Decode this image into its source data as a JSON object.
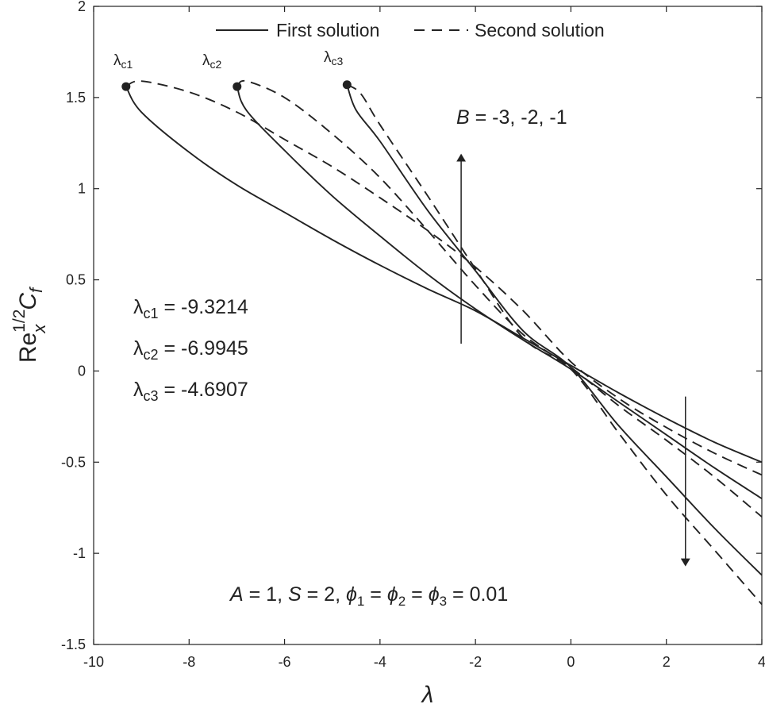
{
  "chart_data": {
    "type": "line",
    "xlabel": "λ",
    "ylabel": {
      "base": "Re",
      "sup": "1/2",
      "sub": "x",
      "cf": "C",
      "cf_sub": "f"
    },
    "xlim": [
      -10,
      4
    ],
    "ylim": [
      -1.5,
      2
    ],
    "xticks": [
      -10,
      -8,
      -6,
      -4,
      -2,
      0,
      2,
      4
    ],
    "yticks": [
      -1.5,
      -1,
      -0.5,
      0,
      0.5,
      1,
      1.5,
      2
    ],
    "xtick_labels": [
      "-10",
      "-8",
      "-6",
      "-4",
      "-2",
      "0",
      "2",
      "4"
    ],
    "ytick_labels": [
      "-1.5",
      "-1",
      "-0.5",
      "0",
      "0.5",
      "1",
      "1.5",
      "2"
    ],
    "grid": false,
    "legend": {
      "position": "top",
      "entries": [
        {
          "label": "First solution",
          "style": "solid"
        },
        {
          "label": "Second solution",
          "style": "dashed"
        }
      ]
    },
    "series": [
      {
        "group": "c1",
        "style": "solid",
        "x": [
          -9.3214,
          -9.0,
          -8.0,
          -7.0,
          -6.0,
          -5.0,
          -4.0,
          -3.0,
          -2.0,
          -1.0,
          0.0,
          1.0,
          2.0,
          3.0,
          4.0
        ],
        "y": [
          1.56,
          1.42,
          1.2,
          1.02,
          0.87,
          0.72,
          0.58,
          0.45,
          0.33,
          0.18,
          0.03,
          -0.12,
          -0.26,
          -0.39,
          -0.5
        ]
      },
      {
        "group": "c1",
        "style": "dashed",
        "x": [
          -9.3214,
          -9.0,
          -8.0,
          -7.0,
          -6.0,
          -5.0,
          -4.0,
          -3.0,
          -2.0,
          -1.0,
          0.0,
          1.0,
          2.0,
          3.0,
          4.0
        ],
        "y": [
          1.56,
          1.59,
          1.53,
          1.42,
          1.27,
          1.12,
          0.95,
          0.77,
          0.57,
          0.33,
          0.05,
          -0.15,
          -0.31,
          -0.45,
          -0.57
        ]
      },
      {
        "group": "c2",
        "style": "solid",
        "x": [
          -6.9945,
          -6.8,
          -6.0,
          -5.0,
          -4.0,
          -3.0,
          -2.0,
          -1.0,
          0.0,
          1.0,
          2.0,
          3.0,
          4.0
        ],
        "y": [
          1.56,
          1.43,
          1.21,
          0.96,
          0.74,
          0.53,
          0.34,
          0.17,
          0.01,
          -0.17,
          -0.35,
          -0.53,
          -0.7
        ]
      },
      {
        "group": "c2",
        "style": "dashed",
        "x": [
          -6.9945,
          -6.8,
          -6.0,
          -5.0,
          -4.0,
          -3.0,
          -2.0,
          -1.0,
          0.0,
          1.0,
          2.0,
          3.0,
          4.0
        ],
        "y": [
          1.56,
          1.59,
          1.5,
          1.3,
          1.06,
          0.77,
          0.47,
          0.2,
          0.02,
          -0.19,
          -0.38,
          -0.58,
          -0.8
        ]
      },
      {
        "group": "c3",
        "style": "solid",
        "x": [
          -4.6907,
          -4.5,
          -4.0,
          -3.0,
          -2.0,
          -1.0,
          0.0,
          1.0,
          2.0,
          3.0,
          4.0
        ],
        "y": [
          1.57,
          1.43,
          1.26,
          0.88,
          0.55,
          0.22,
          0.02,
          -0.3,
          -0.58,
          -0.86,
          -1.12
        ]
      },
      {
        "group": "c3",
        "style": "dashed",
        "x": [
          -4.6907,
          -4.4,
          -4.0,
          -3.0,
          -2.0,
          -1.0,
          0.0,
          1.0,
          2.0,
          3.0,
          4.0
        ],
        "y": [
          1.57,
          1.52,
          1.35,
          0.96,
          0.56,
          0.18,
          0.01,
          -0.34,
          -0.68,
          -0.98,
          -1.28
        ]
      }
    ],
    "critical_points": [
      {
        "label": "λc1",
        "x": -9.3214,
        "y": 1.56
      },
      {
        "label": "λc2",
        "x": -6.9945,
        "y": 1.56
      },
      {
        "label": "λc3",
        "x": -4.6907,
        "y": 1.57
      }
    ],
    "arrows": [
      {
        "direction": "up",
        "x": -2.3,
        "y_from": 0.15,
        "y_to": 1.17
      },
      {
        "direction": "down",
        "x": 2.4,
        "y_from": -0.14,
        "y_to": -1.05
      }
    ],
    "annotations": {
      "critical_values": [
        "λc1 = -9.3214",
        "λc2 = -6.9945",
        "λc3 = -4.6907"
      ],
      "B": "B = -3, -2, -1",
      "params": "A = 1,  S = 2,  ϕ1 =  ϕ2 =  ϕ3 = 0.01"
    }
  }
}
